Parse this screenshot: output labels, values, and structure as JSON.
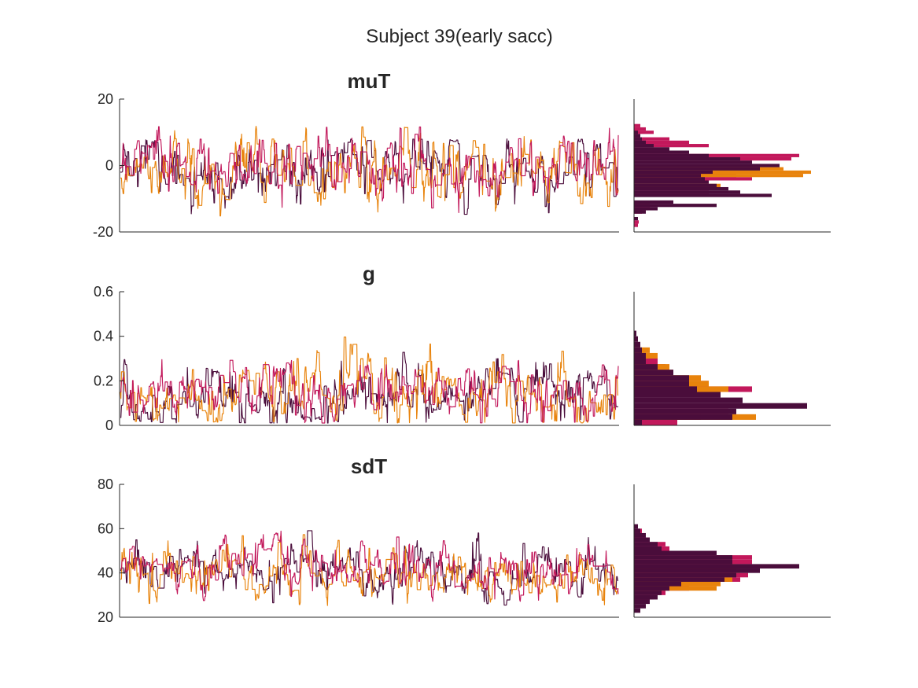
{
  "figure": {
    "title": "Subject 39(early sacc)",
    "colors": [
      "#4a0d3b",
      "#c2185b",
      "#e8830c"
    ]
  },
  "chart_data": [
    {
      "type": "line",
      "title": "muT",
      "ylim": [
        -20,
        20
      ],
      "yticks": [
        "-20",
        "0",
        "20"
      ],
      "grid": false,
      "x_ticks_shown": false,
      "n_samples": 900,
      "series": [
        {
          "color": "#4a0d3b",
          "mean": -2,
          "sd": 5.5,
          "min": -15,
          "max": 8
        },
        {
          "color": "#c2185b",
          "mean": 0,
          "sd": 5.5,
          "min": -19,
          "max": 12
        },
        {
          "color": "#e8830c",
          "mean": -1,
          "sd": 5.5,
          "min": -16,
          "max": 12
        }
      ],
      "histogram": {
        "type": "bar",
        "orientation": "horizontal",
        "bin_width": 1,
        "series": [
          {
            "color": "#c2185b",
            "bins": [
              {
                "y": -18,
                "count": 5
              },
              {
                "y": -17,
                "count": 6
              },
              {
                "y": -14,
                "count": 10
              },
              {
                "y": -12,
                "count": 20
              },
              {
                "y": -8,
                "count": 95
              },
              {
                "y": -4,
                "count": 150
              },
              {
                "y": -3,
                "count": 130
              },
              {
                "y": 2,
                "count": 200
              },
              {
                "y": 3,
                "count": 210
              },
              {
                "y": 6,
                "count": 95
              },
              {
                "y": 7,
                "count": 70
              },
              {
                "y": 8,
                "count": 45
              },
              {
                "y": 10,
                "count": 25
              },
              {
                "y": 11,
                "count": 15
              },
              {
                "y": 12,
                "count": 8
              }
            ]
          },
          {
            "color": "#e8830c",
            "bins": [
              {
                "y": -6,
                "count": 110
              },
              {
                "y": -3,
                "count": 215
              },
              {
                "y": -2,
                "count": 225
              },
              {
                "y": -1,
                "count": 190
              }
            ]
          },
          {
            "color": "#4a0d3b",
            "bins": [
              {
                "y": -16,
                "count": 5
              },
              {
                "y": -14,
                "count": 15
              },
              {
                "y": -13,
                "count": 30
              },
              {
                "y": -12,
                "count": 105
              },
              {
                "y": -11,
                "count": 50
              },
              {
                "y": -9,
                "count": 175
              },
              {
                "y": -8,
                "count": 135
              },
              {
                "y": -7,
                "count": 120
              },
              {
                "y": -6,
                "count": 105
              },
              {
                "y": -5,
                "count": 95
              },
              {
                "y": -4,
                "count": 90
              },
              {
                "y": -3,
                "count": 85
              },
              {
                "y": -2,
                "count": 100
              },
              {
                "y": -1,
                "count": 160
              },
              {
                "y": 0,
                "count": 185
              },
              {
                "y": 1,
                "count": 150
              },
              {
                "y": 2,
                "count": 135
              },
              {
                "y": 3,
                "count": 95
              },
              {
                "y": 4,
                "count": 70
              },
              {
                "y": 5,
                "count": 45
              },
              {
                "y": 6,
                "count": 25
              },
              {
                "y": 7,
                "count": 15
              },
              {
                "y": 8,
                "count": 10
              },
              {
                "y": 9,
                "count": 8
              },
              {
                "y": 10,
                "count": 5
              }
            ]
          }
        ]
      }
    },
    {
      "type": "line",
      "title": "g",
      "ylim": [
        0,
        0.6
      ],
      "yticks": [
        "0",
        "0.2",
        "0.4",
        "0.6"
      ],
      "grid": false,
      "x_ticks_shown": false,
      "n_samples": 900,
      "series": [
        {
          "color": "#4a0d3b",
          "mean": 0.14,
          "sd": 0.07,
          "min": 0.01,
          "max": 0.44
        },
        {
          "color": "#c2185b",
          "mean": 0.15,
          "sd": 0.07,
          "min": 0.01,
          "max": 0.41
        },
        {
          "color": "#e8830c",
          "mean": 0.15,
          "sd": 0.08,
          "min": 0.01,
          "max": 0.44
        }
      ],
      "histogram": {
        "type": "bar",
        "orientation": "horizontal",
        "bin_width": 0.025,
        "series": [
          {
            "color": "#c2185b",
            "bins": [
              {
                "y": 0.0125,
                "count": 55
              },
              {
                "y": 0.0375,
                "count": 85
              },
              {
                "y": 0.0625,
                "count": 120
              },
              {
                "y": 0.1625,
                "count": 150
              },
              {
                "y": 0.1875,
                "count": 95
              },
              {
                "y": 0.2625,
                "count": 40
              },
              {
                "y": 0.2875,
                "count": 30
              }
            ]
          },
          {
            "color": "#e8830c",
            "bins": [
              {
                "y": 0.0375,
                "count": 155
              },
              {
                "y": 0.1625,
                "count": 120
              },
              {
                "y": 0.1875,
                "count": 95
              },
              {
                "y": 0.2125,
                "count": 85
              },
              {
                "y": 0.2375,
                "count": 50
              },
              {
                "y": 0.2625,
                "count": 45
              },
              {
                "y": 0.3125,
                "count": 30
              },
              {
                "y": 0.3375,
                "count": 20
              }
            ]
          },
          {
            "color": "#4a0d3b",
            "bins": [
              {
                "y": 0.0125,
                "count": 10
              },
              {
                "y": 0.0375,
                "count": 125
              },
              {
                "y": 0.0625,
                "count": 130
              },
              {
                "y": 0.0875,
                "count": 220
              },
              {
                "y": 0.1125,
                "count": 138
              },
              {
                "y": 0.1375,
                "count": 110
              },
              {
                "y": 0.1625,
                "count": 80
              },
              {
                "y": 0.1875,
                "count": 70
              },
              {
                "y": 0.2125,
                "count": 70
              },
              {
                "y": 0.2375,
                "count": 50
              },
              {
                "y": 0.2625,
                "count": 30
              },
              {
                "y": 0.2875,
                "count": 15
              },
              {
                "y": 0.3125,
                "count": 15
              },
              {
                "y": 0.3375,
                "count": 10
              },
              {
                "y": 0.3625,
                "count": 8
              },
              {
                "y": 0.3875,
                "count": 5
              },
              {
                "y": 0.4125,
                "count": 3
              }
            ]
          }
        ]
      }
    },
    {
      "type": "line",
      "title": "sdT",
      "ylim": [
        20,
        80
      ],
      "yticks": [
        "20",
        "40",
        "60",
        "80"
      ],
      "grid": false,
      "x_ticks_shown": false,
      "n_samples": 900,
      "series": [
        {
          "color": "#4a0d3b",
          "mean": 41,
          "sd": 6,
          "min": 25,
          "max": 62
        },
        {
          "color": "#c2185b",
          "mean": 42,
          "sd": 6,
          "min": 27,
          "max": 59
        },
        {
          "color": "#e8830c",
          "mean": 39,
          "sd": 6,
          "min": 25,
          "max": 60
        }
      ],
      "histogram": {
        "type": "bar",
        "orientation": "horizontal",
        "bin_width": 2,
        "series": [
          {
            "color": "#c2185b",
            "bins": [
              {
                "y": 29,
                "count": 25
              },
              {
                "y": 31,
                "count": 40
              },
              {
                "y": 33,
                "count": 70
              },
              {
                "y": 35,
                "count": 85
              },
              {
                "y": 37,
                "count": 135
              },
              {
                "y": 39,
                "count": 145
              },
              {
                "y": 41,
                "count": 130
              },
              {
                "y": 43,
                "count": 125
              },
              {
                "y": 45,
                "count": 150
              },
              {
                "y": 47,
                "count": 150
              },
              {
                "y": 49,
                "count": 40
              },
              {
                "y": 51,
                "count": 45
              },
              {
                "y": 53,
                "count": 40
              },
              {
                "y": 55,
                "count": 20
              },
              {
                "y": 57,
                "count": 15
              },
              {
                "y": 59,
                "count": 10
              }
            ]
          },
          {
            "color": "#e8830c",
            "bins": [
              {
                "y": 33,
                "count": 105
              },
              {
                "y": 35,
                "count": 110
              },
              {
                "y": 37,
                "count": 125
              },
              {
                "y": 41,
                "count": 135
              },
              {
                "y": 43,
                "count": 130
              }
            ]
          },
          {
            "color": "#4a0d3b",
            "bins": [
              {
                "y": 23,
                "count": 8
              },
              {
                "y": 25,
                "count": 15
              },
              {
                "y": 27,
                "count": 20
              },
              {
                "y": 29,
                "count": 30
              },
              {
                "y": 31,
                "count": 35
              },
              {
                "y": 33,
                "count": 45
              },
              {
                "y": 35,
                "count": 60
              },
              {
                "y": 37,
                "count": 115
              },
              {
                "y": 39,
                "count": 130
              },
              {
                "y": 41,
                "count": 160
              },
              {
                "y": 43,
                "count": 210
              },
              {
                "y": 45,
                "count": 125
              },
              {
                "y": 47,
                "count": 125
              },
              {
                "y": 49,
                "count": 105
              },
              {
                "y": 51,
                "count": 35
              },
              {
                "y": 53,
                "count": 30
              },
              {
                "y": 55,
                "count": 20
              },
              {
                "y": 57,
                "count": 15
              },
              {
                "y": 59,
                "count": 8
              },
              {
                "y": 61,
                "count": 5
              }
            ]
          }
        ]
      }
    }
  ]
}
